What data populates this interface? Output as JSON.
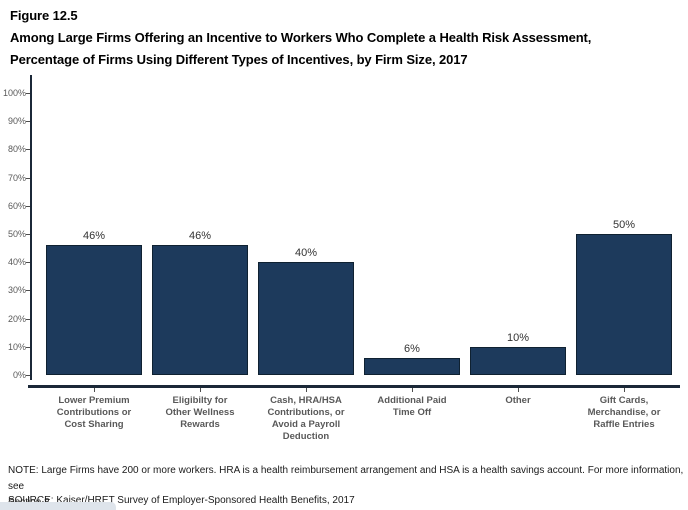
{
  "title": {
    "figure_label": "Figure 12.5",
    "line1": "Among Large Firms Offering an Incentive to Workers Who Complete a Health Risk Assessment,",
    "line2": "Percentage of Firms Using Different Types of Incentives, by Firm Size, 2017"
  },
  "chart_data": {
    "type": "bar",
    "title": "Percentage of Firms Using Different Types of Incentives, by Firm Size, 2017",
    "categories": [
      "Lower Premium\nContributions or\nCost Sharing",
      "Eligibilty for\nOther Wellness\nRewards",
      "Cash, HRA/HSA\nContributions, or\nAvoid a Payroll\nDeduction",
      "Additional Paid\nTime Off",
      "Other",
      "Gift Cards,\nMerchandise, or\nRaffle Entries"
    ],
    "values": [
      46,
      46,
      40,
      6,
      10,
      50
    ],
    "data_labels": [
      "46%",
      "46%",
      "40%",
      "6%",
      "10%",
      "50%"
    ],
    "xlabel": "",
    "ylabel": "",
    "ylim": [
      0,
      100
    ],
    "ytick_step": 10,
    "ytick_labels": [
      "0%",
      "10%",
      "20%",
      "30%",
      "40%",
      "50%",
      "60%",
      "70%",
      "80%",
      "90%",
      "100%"
    ],
    "grid": false,
    "legend": false,
    "bar_color": "#1d3a5c",
    "bar_border_color": "#0f2131",
    "axis_color": "#1b2838",
    "tick_label_color": "#595959"
  },
  "footnotes": {
    "note": "NOTE: Large Firms have 200 or more workers. HRA is a health reimbursement arrangement and HSA is a health savings account. For more information, see\nSection 8.",
    "source": "SOURCE: Kaiser/HRET Survey of Employer-Sponsored Health Benefits, 2017"
  }
}
